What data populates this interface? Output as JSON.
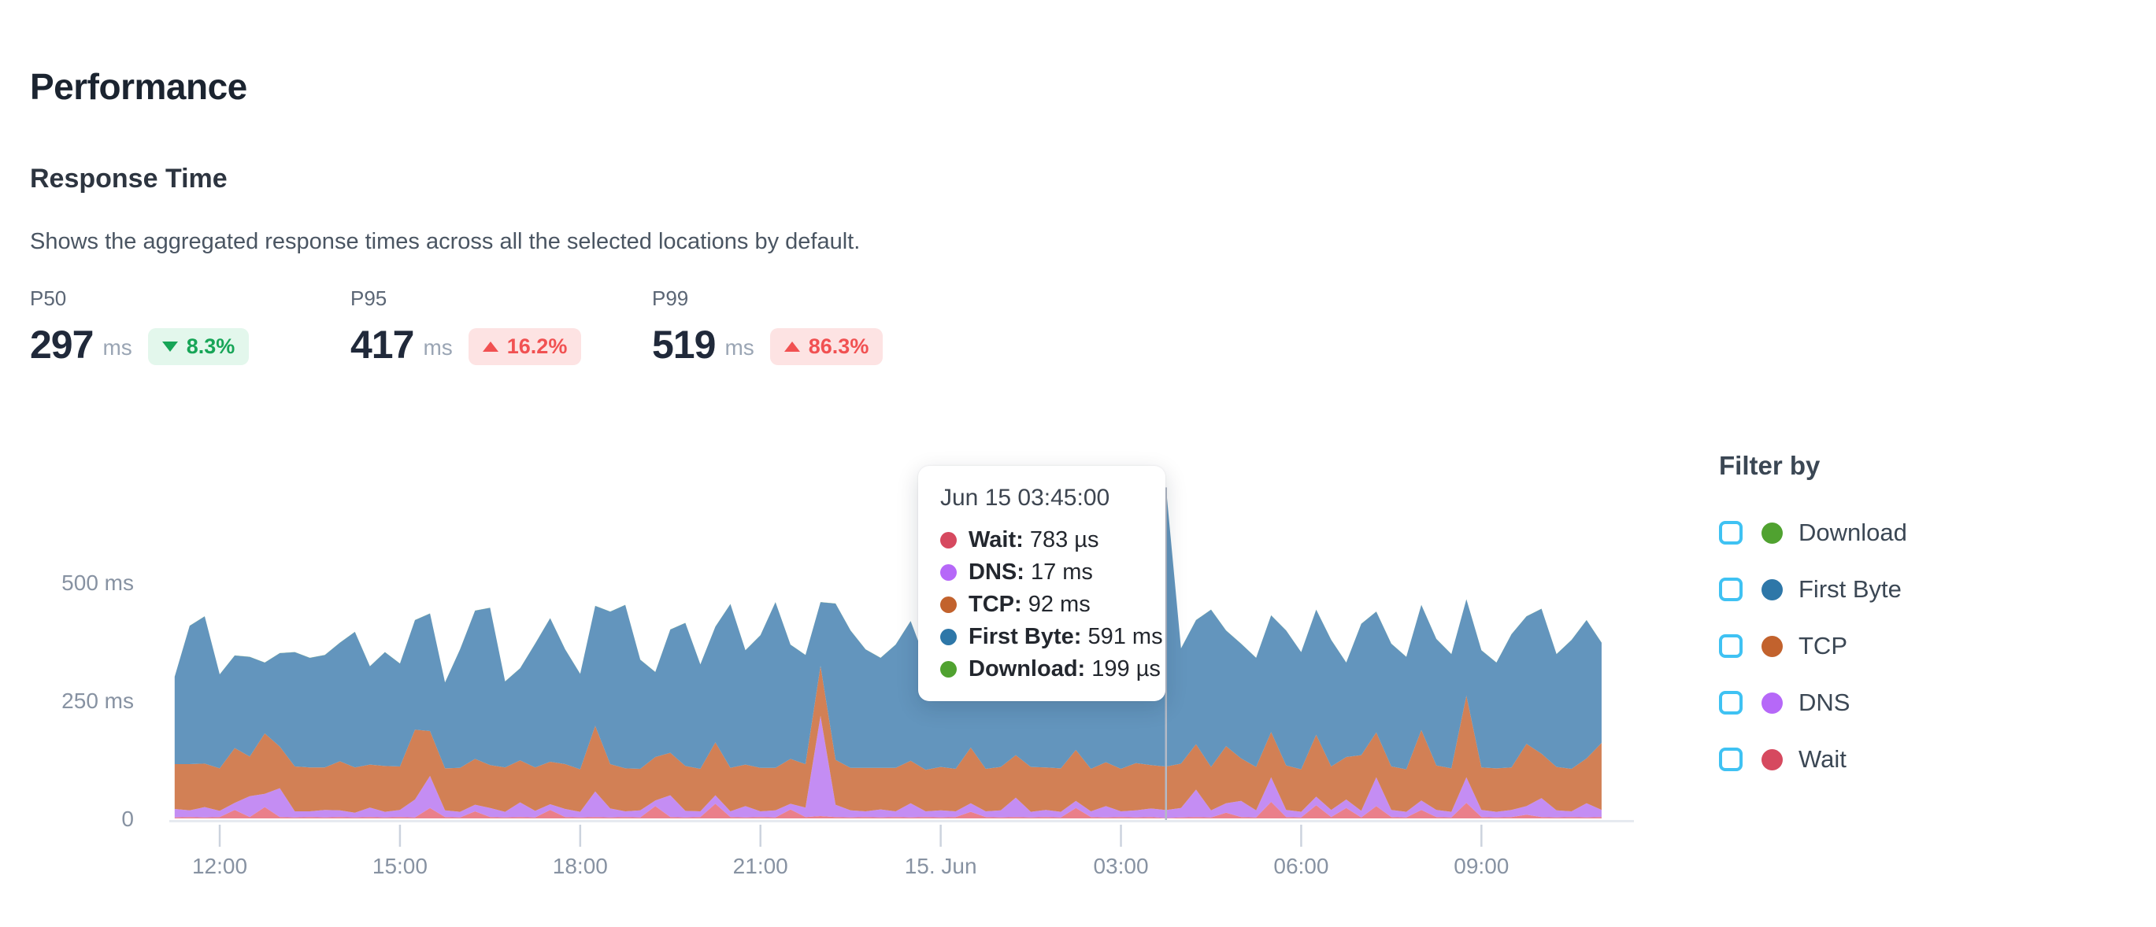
{
  "page": {
    "title": "Performance"
  },
  "section": {
    "title": "Response Time",
    "description": "Shows the aggregated response times across all the selected locations by default."
  },
  "metrics": [
    {
      "label": "P50",
      "value": "297",
      "unit": "ms",
      "change": "8.3%",
      "direction": "down",
      "sentiment": "positive"
    },
    {
      "label": "P95",
      "value": "417",
      "unit": "ms",
      "change": "16.2%",
      "direction": "up",
      "sentiment": "negative"
    },
    {
      "label": "P99",
      "value": "519",
      "unit": "ms",
      "change": "86.3%",
      "direction": "up",
      "sentiment": "negative"
    }
  ],
  "tooltip": {
    "title": "Jun 15 03:45:00",
    "rows": [
      {
        "label": "Wait:",
        "value": "783 µs",
        "color": "#d6495f"
      },
      {
        "label": "DNS:",
        "value": "17 ms",
        "color": "#b668f8"
      },
      {
        "label": "TCP:",
        "value": "92 ms",
        "color": "#c2622d"
      },
      {
        "label": "First Byte:",
        "value": "591 ms",
        "color": "#2e77a8"
      },
      {
        "label": "Download:",
        "value": "199 µs",
        "color": "#50a230"
      }
    ]
  },
  "filter": {
    "title": "Filter by",
    "checkbox_color": "#3fc2f3",
    "items": [
      {
        "label": "Download",
        "color": "#50a230",
        "checked": false
      },
      {
        "label": "First Byte",
        "color": "#2e77a8",
        "checked": false
      },
      {
        "label": "TCP",
        "color": "#c2622d",
        "checked": false
      },
      {
        "label": "DNS",
        "color": "#b668f8",
        "checked": false
      },
      {
        "label": "Wait",
        "color": "#d6495f",
        "checked": false
      }
    ]
  },
  "chart_data": {
    "type": "area",
    "stacked": true,
    "unit": "ms",
    "grid": false,
    "legend_position": "right",
    "x_start": "Jun 14 11:15",
    "x_interval_minutes": 15,
    "ylim": [
      0,
      750
    ],
    "y_ticks": [
      {
        "value": 0,
        "label": "0"
      },
      {
        "value": 250,
        "label": "250 ms"
      },
      {
        "value": 500,
        "label": "500 ms"
      }
    ],
    "x_ticks": [
      {
        "index": 3,
        "label": "12:00"
      },
      {
        "index": 15,
        "label": "15:00"
      },
      {
        "index": 27,
        "label": "18:00"
      },
      {
        "index": 39,
        "label": "21:00"
      },
      {
        "index": 51,
        "label": "15. Jun"
      },
      {
        "index": 63,
        "label": "03:00"
      },
      {
        "index": 75,
        "label": "06:00"
      },
      {
        "index": 87,
        "label": "09:00"
      }
    ],
    "hover_index": 66,
    "hover_time": "Jun 15 03:45:00",
    "series": [
      {
        "name": "Wait",
        "fill": "#ea7f8a",
        "dot_color": "#d6495f",
        "values": [
          2,
          3,
          2,
          3,
          18,
          3,
          24,
          3,
          2,
          3,
          2,
          3,
          2,
          3,
          2,
          3,
          2,
          22,
          3,
          2,
          15,
          3,
          2,
          3,
          2,
          18,
          3,
          2,
          3,
          2,
          3,
          2,
          26,
          3,
          2,
          3,
          31,
          3,
          2,
          3,
          2,
          19,
          3,
          5,
          3,
          2,
          3,
          2,
          3,
          2,
          3,
          2,
          3,
          14,
          3,
          2,
          3,
          2,
          3,
          2,
          22,
          3,
          2,
          3,
          2,
          3,
          0.8,
          2,
          3,
          2,
          12,
          3,
          2,
          35,
          3,
          2,
          28,
          3,
          22,
          2,
          26,
          3,
          2,
          18,
          3,
          2,
          33,
          3,
          2,
          3,
          8,
          3,
          2,
          3,
          2,
          3
        ]
      },
      {
        "name": "DNS",
        "fill": "#c48df3",
        "dot_color": "#b668f8",
        "values": [
          18,
          14,
          22,
          13,
          15,
          44,
          28,
          61,
          13,
          12,
          16,
          14,
          10,
          20,
          12,
          15,
          38,
          68,
          14,
          12,
          14,
          19,
          12,
          31,
          14,
          12,
          17,
          12,
          54,
          19,
          12,
          15,
          12,
          46,
          14,
          12,
          18,
          12,
          24,
          12,
          15,
          12,
          20,
          212,
          26,
          15,
          12,
          17,
          12,
          30,
          12,
          15,
          12,
          18,
          12,
          15,
          41,
          12,
          15,
          12,
          15,
          12,
          24,
          12,
          15,
          18,
          17,
          20,
          58,
          15,
          20,
          34,
          15,
          52,
          15,
          12,
          18,
          15,
          18,
          14,
          61,
          15,
          12,
          20,
          15,
          12,
          54,
          15,
          12,
          15,
          18,
          40,
          15,
          12,
          30,
          15
        ]
      },
      {
        "name": "TCP",
        "fill": "#d28055",
        "dot_color": "#c2622d",
        "values": [
          95,
          98,
          92,
          90,
          116,
          84,
          128,
          88,
          95,
          93,
          90,
          104,
          96,
          91,
          97,
          92,
          148,
          95,
          89,
          93,
          97,
          91,
          94,
          89,
          92,
          90,
          95,
          90,
          139,
          94,
          91,
          88,
          92,
          90,
          95,
          90,
          112,
          92,
          88,
          92,
          90,
          95,
          92,
          106,
          95,
          90,
          92,
          88,
          92,
          90,
          88,
          92,
          90,
          118,
          90,
          92,
          90,
          95,
          90,
          92,
          108,
          90,
          93,
          90,
          100,
          92,
          92,
          94,
          96,
          92,
          121,
          90,
          92,
          96,
          94,
          90,
          131,
          92,
          90,
          118,
          95,
          92,
          90,
          149,
          94,
          92,
          173,
          90,
          92,
          90,
          132,
          94,
          92,
          90,
          95,
          142
        ]
      },
      {
        "name": "First Byte",
        "fill": "#6395bd",
        "dot_color": "#2e77a8",
        "values": [
          185,
          293,
          312,
          199,
          196,
          211,
          150,
          198,
          242,
          232,
          238,
          251,
          287,
          208,
          241,
          218,
          232,
          249,
          182,
          251,
          314,
          333,
          182,
          195,
          262,
          304,
          243,
          202,
          254,
          323,
          346,
          231,
          180,
          261,
          303,
          221,
          245,
          347,
          242,
          281,
          351,
          242,
          231,
          135,
          331,
          291,
          251,
          233,
          261,
          296,
          231,
          241,
          271,
          300,
          221,
          251,
          300,
          341,
          230,
          260,
          331,
          247,
          211,
          239,
          193,
          257,
          591,
          244,
          263,
          333,
          245,
          243,
          231,
          247,
          286,
          248,
          265,
          268,
          200,
          278,
          256,
          260,
          238,
          265,
          268,
          242,
          204,
          248,
          224,
          282,
          270,
          307,
          239,
          273,
          293,
          212
        ]
      },
      {
        "name": "Download",
        "fill": "#52a52e",
        "dot_color": "#50a230",
        "values": [
          0.2,
          0.2,
          0.2,
          0.2,
          0.2,
          0.2,
          0.2,
          0.2,
          0.2,
          0.2,
          0.2,
          0.2,
          0.2,
          0.2,
          0.2,
          0.2,
          0.2,
          0.2,
          0.2,
          0.2,
          0.2,
          0.2,
          0.2,
          0.2,
          0.2,
          0.2,
          0.2,
          0.2,
          0.2,
          0.2,
          0.2,
          0.2,
          0.2,
          0.2,
          0.2,
          0.2,
          0.2,
          0.2,
          0.2,
          0.2,
          0.2,
          0.2,
          0.2,
          0.2,
          0.2,
          0.2,
          0.2,
          0.2,
          0.2,
          0.2,
          0.2,
          0.2,
          0.2,
          0.2,
          0.2,
          0.2,
          0.2,
          0.2,
          0.2,
          0.2,
          0.2,
          0.2,
          0.2,
          0.2,
          0.2,
          0.2,
          0.2,
          0.2,
          0.2,
          0.2,
          0.2,
          0.2,
          0.2,
          0.2,
          0.2,
          0.2,
          0.2,
          0.2,
          0.2,
          0.2,
          0.2,
          0.2,
          0.2,
          0.2,
          0.2,
          0.2,
          0.2,
          0.2,
          0.2,
          0.2,
          0.2,
          0.2,
          0.2,
          0.2,
          0.2,
          0.2
        ]
      }
    ]
  }
}
